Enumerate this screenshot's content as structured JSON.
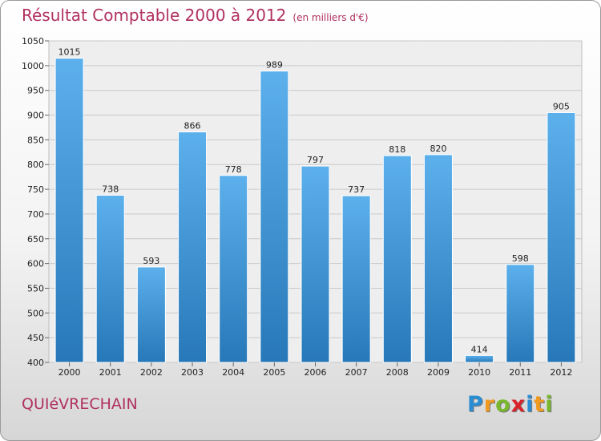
{
  "title": "Résultat Comptable 2000 à 2012",
  "unit_note": "(en milliers d'€)",
  "commune": "QUIéVRECHAIN",
  "logo": {
    "letters": [
      "P",
      "r",
      "o",
      "x",
      "i",
      "t",
      "i"
    ],
    "colors": [
      "#2a8dd4",
      "#f29a1e",
      "#79b82c",
      "#d8232a",
      "#2a8dd4",
      "#f29a1e",
      "#79b82c"
    ]
  },
  "colors": {
    "bar_top": "#5cb0ec",
    "bar_bottom": "#2778b8",
    "title": "#b03060"
  },
  "chart_data": {
    "type": "bar",
    "categories": [
      "2000",
      "2001",
      "2002",
      "2003",
      "2004",
      "2005",
      "2006",
      "2007",
      "2008",
      "2009",
      "2010",
      "2011",
      "2012"
    ],
    "values": [
      1015,
      738,
      593,
      866,
      778,
      989,
      797,
      737,
      818,
      820,
      414,
      598,
      905
    ],
    "ylim": [
      400,
      1050
    ],
    "yticks": [
      400,
      450,
      500,
      550,
      600,
      650,
      700,
      750,
      800,
      850,
      900,
      950,
      1000,
      1050
    ],
    "grid": true,
    "title": "Résultat Comptable 2000 à 2012",
    "xlabel": "",
    "ylabel": ""
  }
}
